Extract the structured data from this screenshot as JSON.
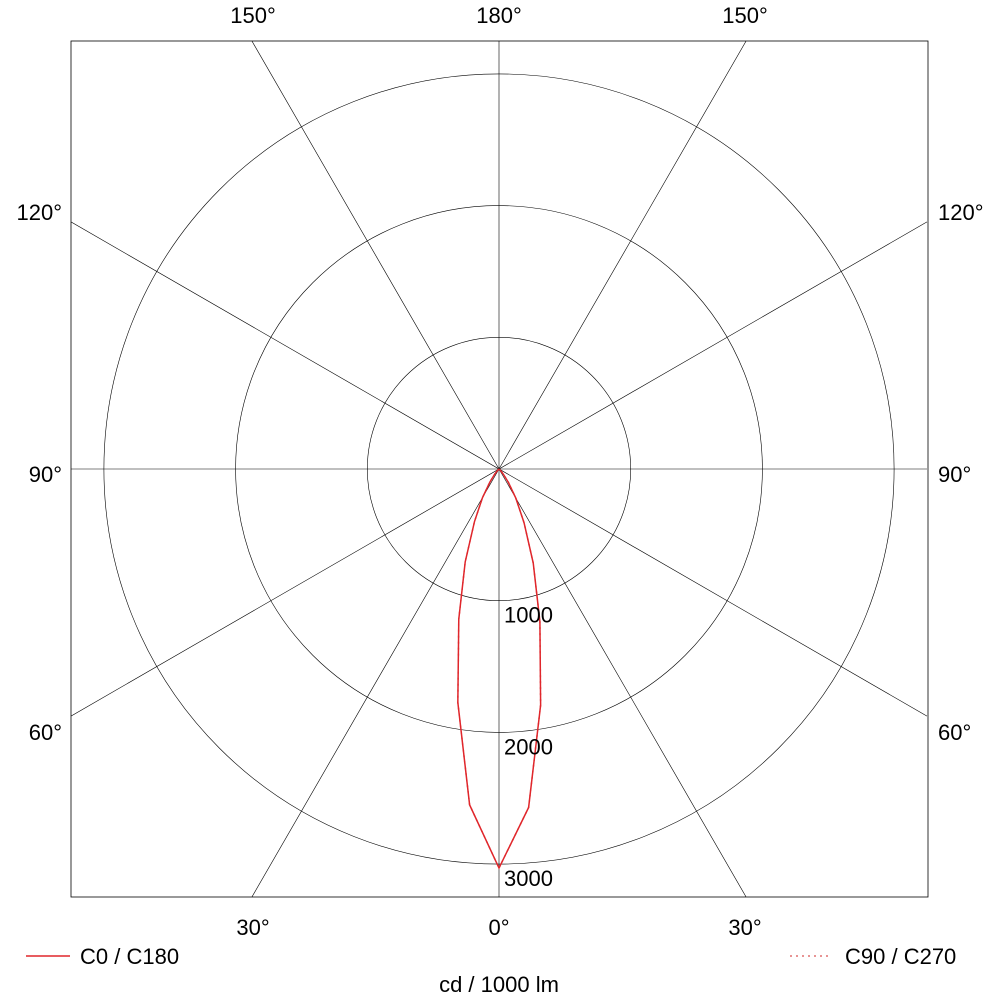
{
  "chart_data": {
    "type": "polar-line",
    "unit_label": "cd / 1000 lm",
    "radial_ticks": [
      1000,
      2000,
      3000
    ],
    "radial_tick_labels": [
      "1000",
      "2000",
      "3000"
    ],
    "rmax": 3250,
    "grid": true,
    "angle_labels": {
      "top": [
        "150°",
        "180°",
        "150°"
      ],
      "left": [
        "120°",
        "90°",
        "60°"
      ],
      "right": [
        "120°",
        "90°",
        "60°"
      ],
      "bottom": [
        "30°",
        "0°",
        "30°"
      ]
    },
    "gamma_angles": [
      0,
      5,
      10,
      15,
      20,
      25,
      30,
      35,
      40,
      45,
      50,
      60,
      90,
      120,
      150,
      180
    ],
    "series": [
      {
        "name": "C0 / C180",
        "style": "solid",
        "color": "#e0262b",
        "left_values": [
          3030,
          2560,
          1800,
          1180,
          750,
          440,
          250,
          120,
          50,
          15,
          0,
          0,
          0,
          0,
          0,
          0
        ],
        "right_values": [
          3030,
          2580,
          1820,
          1200,
          760,
          450,
          255,
          125,
          52,
          15,
          0,
          0,
          0,
          0,
          0,
          0
        ]
      },
      {
        "name": "C90 / C270",
        "style": "dotted",
        "color": "#e07070",
        "left_values": [
          3030,
          2560,
          1800,
          1180,
          750,
          440,
          250,
          120,
          50,
          15,
          0,
          0,
          0,
          0,
          0,
          0
        ],
        "right_values": [
          3030,
          2580,
          1820,
          1200,
          760,
          450,
          255,
          125,
          52,
          15,
          0,
          0,
          0,
          0,
          0,
          0
        ]
      }
    ],
    "legend": [
      "C0 / C180",
      "C90 / C270"
    ]
  }
}
